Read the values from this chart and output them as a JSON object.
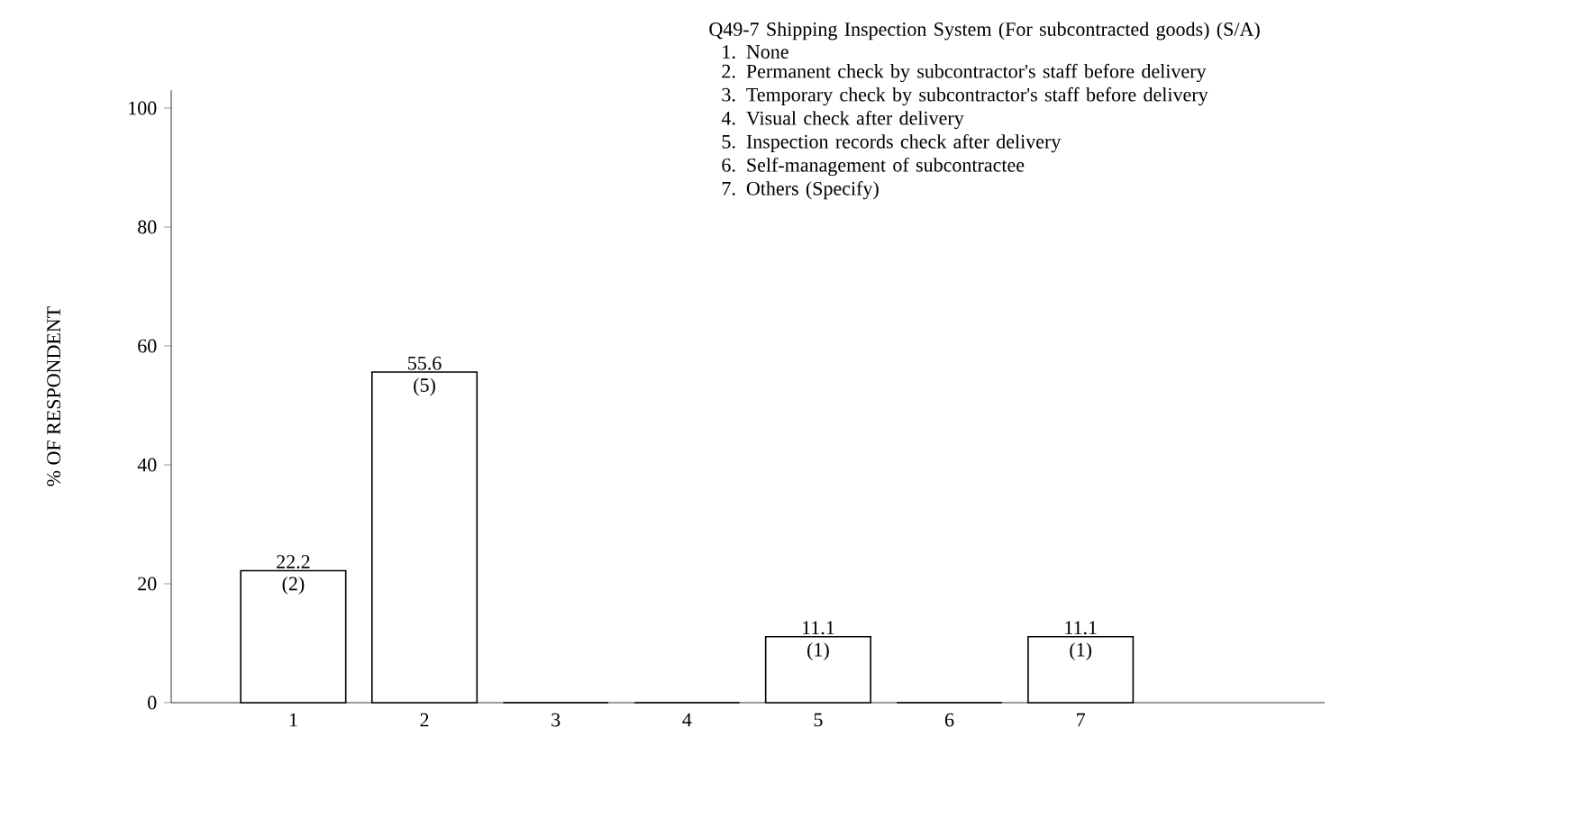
{
  "chart_data": {
    "type": "bar",
    "title": "Q49-7 Shipping Inspection System (For subcontracted goods) (S/A)",
    "ylabel": "% OF RESPONDENT",
    "categories": [
      "1",
      "2",
      "3",
      "4",
      "5",
      "6",
      "7"
    ],
    "values": [
      22.2,
      55.6,
      0,
      0,
      11.1,
      0,
      11.1
    ],
    "value_labels": [
      "22.2",
      "55.6",
      null,
      null,
      "11.1",
      null,
      "11.1"
    ],
    "color": "#000000",
    "ylim": [
      0,
      103
    ],
    "yticks": [
      0,
      20,
      40,
      60,
      80,
      100
    ],
    "annotations": [
      "1. None",
      "2. Permanent check by subcontractor's staff before delivery",
      "3. Temporary check by subcontractor's staff before delivery",
      "4. Visual check after delivery",
      "5. Inspection records check after delivery",
      "6. Self-management of subcontractee",
      "7. Others (Specify)",
      {
        "text": "(2)",
        "x": "1",
        "y": 22.2
      },
      {
        "text": "(5)",
        "x": "2",
        "y": 55.6
      },
      {
        "text": "(1)",
        "x": "5",
        "y": 11.1
      },
      {
        "text": "(1)",
        "x": "7",
        "y": 11.1
      }
    ]
  }
}
